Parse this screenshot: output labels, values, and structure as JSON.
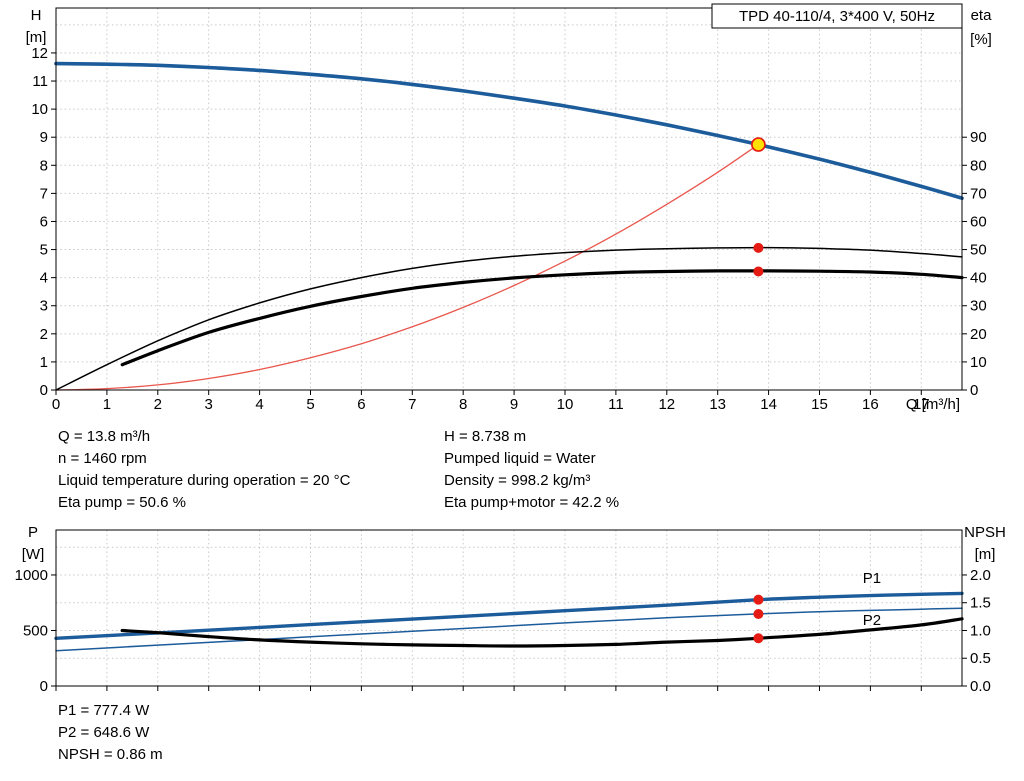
{
  "page": {
    "background": "#ffffff"
  },
  "title_box": {
    "text": "TPD 40-110/4, 3*400 V, 50Hz"
  },
  "info_panel": {
    "left_lines": [
      "Q = 13.8 m³/h",
      "n = 1460 rpm",
      "Liquid temperature during operation = 20 °C",
      "Eta pump = 50.6 %"
    ],
    "right_lines": [
      "H = 8.738 m",
      "Pumped liquid = Water",
      "Density = 998.2 kg/m³",
      "Eta pump+motor = 42.2 %"
    ]
  },
  "result_panel": {
    "lines": [
      "P1 = 777.4 W",
      "P2 = 648.6 W",
      "NPSH = 0.86 m"
    ]
  },
  "colors": {
    "curve_blue": "#1d5c9b",
    "curve_black": "#000000",
    "system_red": "#e8564c",
    "dot_red": "#e51a12",
    "duty_yellow": "#ffe000",
    "grid": "#c9c9c9",
    "axis": "#000000"
  },
  "chart_data": [
    {
      "id": "qh-chart",
      "type": "line",
      "title": "TPD 40-110/4, 3*400 V, 50Hz",
      "x_axis": {
        "label": "Q [m³/h]",
        "min": 0,
        "max": 17.8,
        "ticks": [
          0,
          1,
          2,
          3,
          4,
          5,
          6,
          7,
          8,
          9,
          10,
          11,
          12,
          13,
          14,
          15,
          16,
          17
        ],
        "tick_labels": [
          "0",
          "1",
          "2",
          "3",
          "4",
          "5",
          "6",
          "7",
          "8",
          "9",
          "10",
          "11",
          "12",
          "13",
          "14",
          "15",
          "16",
          "17"
        ],
        "grid": [
          1,
          2,
          3,
          4,
          5,
          6,
          7,
          8,
          9,
          10,
          11,
          12,
          13,
          14,
          15,
          16,
          17
        ]
      },
      "y_left": {
        "label": "H",
        "unit": "[m]",
        "min": 0,
        "plot_max": 13.6,
        "ticks": [
          0,
          1,
          2,
          3,
          4,
          5,
          6,
          7,
          8,
          9,
          10,
          11,
          12
        ],
        "tick_labels": [
          "0",
          "1",
          "2",
          "3",
          "4",
          "5",
          "6",
          "7",
          "8",
          "9",
          "10",
          "11",
          "12"
        ],
        "grid": [
          1,
          2,
          3,
          4,
          5,
          6,
          7,
          8,
          9,
          10,
          11,
          12,
          13
        ]
      },
      "y_right": {
        "label": "eta",
        "unit": "[%]",
        "min": 0,
        "plot_max": 136,
        "ticks": [
          0,
          10,
          20,
          30,
          40,
          50,
          60,
          70,
          80,
          90
        ],
        "tick_labels": [
          "0",
          "10",
          "20",
          "30",
          "40",
          "50",
          "60",
          "70",
          "80",
          "90"
        ]
      },
      "series": [
        {
          "name": "system-curve",
          "axis": "left",
          "color": "#e8564c",
          "width": 1.3,
          "points": [
            [
              0,
              0
            ],
            [
              1,
              0.05
            ],
            [
              2,
              0.18
            ],
            [
              3,
              0.41
            ],
            [
              4,
              0.73
            ],
            [
              5,
              1.15
            ],
            [
              6,
              1.65
            ],
            [
              7,
              2.25
            ],
            [
              8,
              2.94
            ],
            [
              9,
              3.72
            ],
            [
              10,
              4.59
            ],
            [
              11,
              5.55
            ],
            [
              12,
              6.61
            ],
            [
              13,
              7.75
            ],
            [
              13.8,
              8.74
            ]
          ]
        },
        {
          "name": "eta-pump-curve",
          "axis": "right",
          "color": "#000000",
          "width": 1.5,
          "points": [
            [
              0,
              0
            ],
            [
              1,
              9
            ],
            [
              2,
              17.5
            ],
            [
              3,
              25
            ],
            [
              4,
              31
            ],
            [
              5,
              36
            ],
            [
              6,
              40
            ],
            [
              7,
              43.3
            ],
            [
              8,
              45.8
            ],
            [
              9,
              47.6
            ],
            [
              10,
              48.9
            ],
            [
              11,
              49.8
            ],
            [
              12,
              50.3
            ],
            [
              13,
              50.6
            ],
            [
              14,
              50.7
            ],
            [
              15,
              50.4
            ],
            [
              16,
              49.8
            ],
            [
              17,
              48.6
            ],
            [
              17.8,
              47.4
            ]
          ]
        },
        {
          "name": "eta-pump-motor-curve",
          "axis": "right",
          "color": "#000000",
          "width": 3.2,
          "points": [
            [
              1.3,
              9
            ],
            [
              2,
              14
            ],
            [
              3,
              20.5
            ],
            [
              4,
              25.5
            ],
            [
              5,
              29.8
            ],
            [
              6,
              33.3
            ],
            [
              7,
              36.2
            ],
            [
              8,
              38.3
            ],
            [
              9,
              39.9
            ],
            [
              10,
              41.0
            ],
            [
              11,
              41.8
            ],
            [
              12,
              42.2
            ],
            [
              13,
              42.4
            ],
            [
              14,
              42.4
            ],
            [
              15,
              42.3
            ],
            [
              16,
              42.0
            ],
            [
              17,
              41.2
            ],
            [
              17.8,
              40.0
            ]
          ]
        },
        {
          "name": "pump-qh-curve",
          "axis": "left",
          "color": "#1d5c9b",
          "width": 3.6,
          "points": [
            [
              0,
              11.62
            ],
            [
              1,
              11.6
            ],
            [
              2,
              11.56
            ],
            [
              3,
              11.48
            ],
            [
              4,
              11.38
            ],
            [
              5,
              11.24
            ],
            [
              6,
              11.08
            ],
            [
              7,
              10.88
            ],
            [
              8,
              10.65
            ],
            [
              9,
              10.39
            ],
            [
              10,
              10.11
            ],
            [
              11,
              9.79
            ],
            [
              12,
              9.44
            ],
            [
              13,
              9.06
            ],
            [
              13.8,
              8.74
            ],
            [
              15,
              8.22
            ],
            [
              16,
              7.75
            ],
            [
              17,
              7.25
            ],
            [
              17.8,
              6.83
            ]
          ]
        }
      ],
      "markers": [
        {
          "name": "duty-point-marker",
          "axis": "left",
          "x": 13.8,
          "y": 8.738,
          "r": 6.5,
          "fill": "#ffe000",
          "stroke": "#e51a12"
        },
        {
          "name": "eta-pump-point-marker",
          "axis": "right",
          "x": 13.8,
          "y": 50.6,
          "r": 5,
          "fill": "#e51a12"
        },
        {
          "name": "eta-pump-motor-point-marker",
          "axis": "right",
          "x": 13.8,
          "y": 42.2,
          "r": 5,
          "fill": "#e51a12"
        }
      ]
    },
    {
      "id": "power-chart",
      "type": "line",
      "x_axis": {
        "label": "",
        "min": 0,
        "max": 17.8,
        "ticks": [
          0,
          1,
          2,
          3,
          4,
          5,
          6,
          7,
          8,
          9,
          10,
          11,
          12,
          13,
          14,
          15,
          16,
          17
        ],
        "grid": [
          1,
          2,
          3,
          4,
          5,
          6,
          7,
          8,
          9,
          10,
          11,
          12,
          13,
          14,
          15,
          16,
          17
        ]
      },
      "y_left": {
        "label": "P",
        "unit": "[W]",
        "min": 0,
        "plot_max": 1405,
        "ticks": [
          0,
          500,
          1000
        ],
        "tick_labels": [
          "0",
          "500",
          "1000"
        ],
        "grid": [
          250,
          500,
          750,
          1000,
          1250
        ]
      },
      "y_right": {
        "label": "NPSH",
        "unit": "[m]",
        "min": 0,
        "plot_max": 2.81,
        "ticks": [
          0,
          0.5,
          1,
          1.5,
          2
        ],
        "tick_labels": [
          "0.0",
          "0.5",
          "1.0",
          "1.5",
          "2.0"
        ]
      },
      "series": [
        {
          "name": "p2-curve",
          "axis": "left",
          "color": "#1d5c9b",
          "width": 1.5,
          "points": [
            [
              0,
              318
            ],
            [
              2,
              368
            ],
            [
              4,
              418
            ],
            [
              6,
              468
            ],
            [
              8,
              518
            ],
            [
              10,
              568
            ],
            [
              12,
              614
            ],
            [
              13.8,
              649
            ],
            [
              15,
              669
            ],
            [
              16,
              681
            ],
            [
              17,
              692
            ],
            [
              17.8,
              701
            ]
          ]
        },
        {
          "name": "p1-curve",
          "axis": "left",
          "color": "#1d5c9b",
          "width": 3.4,
          "points": [
            [
              0,
              430
            ],
            [
              2,
              478
            ],
            [
              4,
              528
            ],
            [
              6,
              578
            ],
            [
              8,
              628
            ],
            [
              10,
              678
            ],
            [
              12,
              728
            ],
            [
              13.8,
              777
            ],
            [
              15,
              800
            ],
            [
              16,
              814
            ],
            [
              17,
              826
            ],
            [
              17.8,
              834
            ]
          ]
        },
        {
          "name": "npsh-curve",
          "axis": "right",
          "color": "#000000",
          "width": 3.2,
          "points": [
            [
              1.3,
              1.0
            ],
            [
              2,
              0.96
            ],
            [
              3,
              0.89
            ],
            [
              4,
              0.83
            ],
            [
              5,
              0.79
            ],
            [
              6,
              0.76
            ],
            [
              7,
              0.74
            ],
            [
              8,
              0.73
            ],
            [
              9,
              0.72
            ],
            [
              10,
              0.73
            ],
            [
              11,
              0.75
            ],
            [
              12,
              0.79
            ],
            [
              13,
              0.82
            ],
            [
              13.8,
              0.86
            ],
            [
              15,
              0.93
            ],
            [
              16,
              1.01
            ],
            [
              17,
              1.1
            ],
            [
              17.8,
              1.21
            ]
          ]
        }
      ],
      "curve_labels": [
        {
          "text": "P1",
          "axis": "left",
          "x": 15.85,
          "y": 928,
          "color": "#1d5c9b"
        },
        {
          "text": "P2",
          "axis": "left",
          "x": 15.85,
          "y": 549,
          "color": "#1d5c9b"
        }
      ],
      "markers": [
        {
          "name": "p1-point-marker",
          "axis": "left",
          "x": 13.8,
          "y": 777.4,
          "r": 5,
          "fill": "#e51a12"
        },
        {
          "name": "p2-point-marker",
          "axis": "left",
          "x": 13.8,
          "y": 648.6,
          "r": 5,
          "fill": "#e51a12"
        },
        {
          "name": "npsh-point-marker",
          "axis": "right",
          "x": 13.8,
          "y": 0.86,
          "r": 5,
          "fill": "#e51a12"
        }
      ]
    }
  ]
}
